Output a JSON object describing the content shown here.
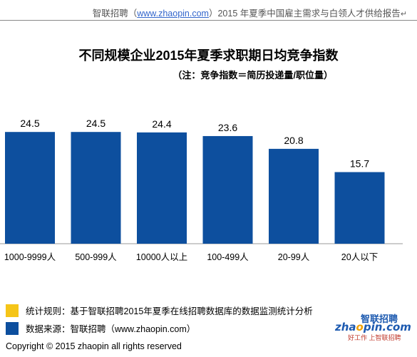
{
  "header": {
    "prefix": "智联招聘（",
    "link": "www.zhaopin.com",
    "suffix": "）2015 年夏季中国雇主需求与白领人才供给报告",
    "mark": "↵"
  },
  "colors": {
    "bar": "#0d4f9e",
    "legend_rule": "#f5c518",
    "legend_source": "#0d4f9e",
    "axis": "#999999"
  },
  "chart_data": {
    "type": "bar",
    "title": "不同规模企业2015年夏季求职期日均竞争指数",
    "subtitle": "（注：竞争指数＝简历投递量/职位量）",
    "categories": [
      "1000-9999人",
      "500-999人",
      "10000人以上",
      "100-499人",
      "20-99人",
      "20人以下"
    ],
    "values": [
      24.5,
      24.5,
      24.4,
      23.6,
      20.8,
      15.7
    ],
    "ylim": [
      0,
      30
    ],
    "grid": false,
    "legend": "none"
  },
  "legend": {
    "rule": "统计规则：基于智联招聘2015年夏季在线招聘数据库的数据监测统计分析",
    "source": "数据来源：智联招聘（www.zhaopin.com）"
  },
  "copyright": "Copyright   ©  2015 zhaopin all rights reserved",
  "logo": {
    "top": "智联招聘",
    "main_a": "zha",
    "main_o": "o",
    "main_b": "pin.com",
    "sub_a": "好工作 ",
    "sub_b": "上智联招聘"
  }
}
